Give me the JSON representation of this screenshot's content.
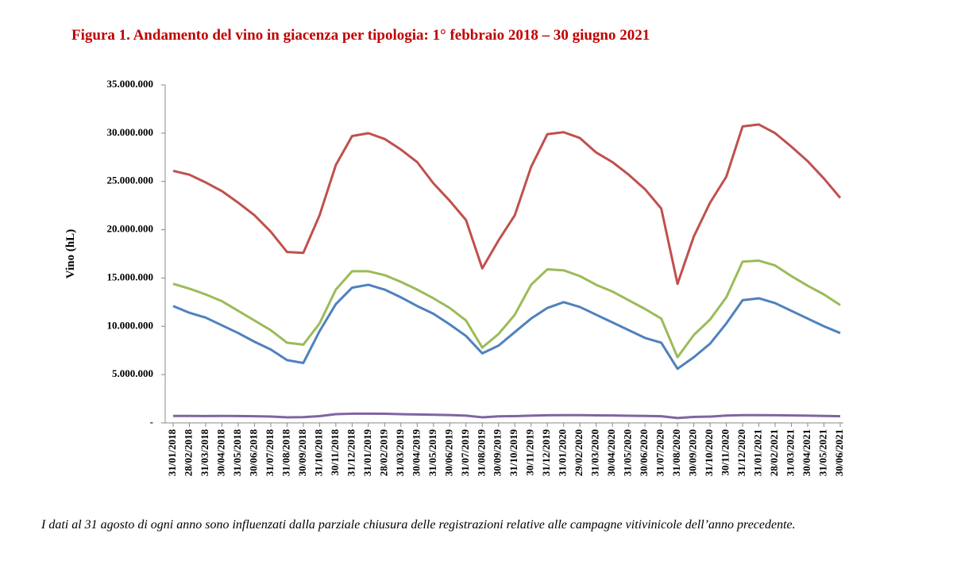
{
  "chart_data": {
    "type": "line",
    "title": "Figura 1. Andamento del vino in giacenza per tipologia: 1° febbraio 2018 – 30 giugno 2021",
    "y_label": "Vino (hL)",
    "note": "I dati al 31 agosto di ogni anno sono influenzati dalla parziale chiusura delle registrazioni relative alle campagne vitivinicole dell’anno precedente.",
    "categories": [
      "31/01/2018",
      "28/02/2018",
      "31/03/2018",
      "30/04/2018",
      "31/05/2018",
      "30/06/2018",
      "31/07/2018",
      "31/08/2018",
      "30/09/2018",
      "31/10/2018",
      "30/11/2018",
      "31/12/2018",
      "31/01/2019",
      "28/02/2019",
      "31/03/2019",
      "30/04/2019",
      "31/05/2019",
      "30/06/2019",
      "31/07/2019",
      "31/08/2019",
      "30/09/2019",
      "31/10/2019",
      "30/11/2019",
      "31/12/2019",
      "31/01/2020",
      "29/02/2020",
      "31/03/2020",
      "30/04/2020",
      "31/05/2020",
      "30/06/2020",
      "31/07/2020",
      "31/08/2020",
      "30/09/2020",
      "31/10/2020",
      "30/11/2020",
      "31/12/2020",
      "31/01/2021",
      "28/02/2021",
      "31/03/2021",
      "30/04/2021",
      "31/05/2021",
      "30/06/2021"
    ],
    "series": [
      {
        "color": "#c0504d",
        "values": [
          26100000,
          25700000,
          24900000,
          24000000,
          22800000,
          21500000,
          19800000,
          17700000,
          17600000,
          21500000,
          26700000,
          29700000,
          30000000,
          29400000,
          28300000,
          27000000,
          24800000,
          23000000,
          21000000,
          16000000,
          18900000,
          21500000,
          26500000,
          29900000,
          30100000,
          29500000,
          28000000,
          27000000,
          25700000,
          24200000,
          22200000,
          14400000,
          19300000,
          22800000,
          25500000,
          30700000,
          30900000,
          30000000,
          28600000,
          27100000,
          25300000,
          23300000
        ]
      },
      {
        "color": "#9bbb59",
        "values": [
          14400000,
          13900000,
          13300000,
          12600000,
          11600000,
          10600000,
          9600000,
          8300000,
          8100000,
          10300000,
          13800000,
          15700000,
          15700000,
          15300000,
          14600000,
          13800000,
          12900000,
          11900000,
          10600000,
          7800000,
          9200000,
          11200000,
          14300000,
          15900000,
          15800000,
          15200000,
          14300000,
          13600000,
          12700000,
          11800000,
          10800000,
          6800000,
          9100000,
          10700000,
          13000000,
          16700000,
          16800000,
          16300000,
          15200000,
          14200000,
          13300000,
          12200000
        ]
      },
      {
        "color": "#4f81bd",
        "values": [
          12100000,
          11400000,
          10900000,
          10100000,
          9300000,
          8400000,
          7600000,
          6500000,
          6200000,
          9500000,
          12300000,
          14000000,
          14300000,
          13800000,
          13000000,
          12100000,
          11300000,
          10200000,
          9000000,
          7200000,
          8000000,
          9400000,
          10800000,
          11900000,
          12500000,
          12000000,
          11200000,
          10400000,
          9600000,
          8800000,
          8300000,
          5600000,
          6800000,
          8200000,
          10300000,
          12700000,
          12900000,
          12400000,
          11600000,
          10800000,
          10000000,
          9300000
        ]
      },
      {
        "color": "#8064a2",
        "values": [
          720000,
          720000,
          710000,
          720000,
          710000,
          690000,
          660000,
          580000,
          600000,
          700000,
          900000,
          950000,
          950000,
          940000,
          900000,
          870000,
          840000,
          810000,
          750000,
          580000,
          680000,
          700000,
          750000,
          790000,
          800000,
          800000,
          780000,
          770000,
          740000,
          720000,
          690000,
          500000,
          620000,
          650000,
          760000,
          800000,
          800000,
          790000,
          770000,
          750000,
          720000,
          690000
        ]
      }
    ],
    "ylim": [
      0,
      35000000
    ],
    "yticks": [
      {
        "value": 0,
        "label": "-"
      },
      {
        "value": 5000000,
        "label": "5.000.000"
      },
      {
        "value": 10000000,
        "label": "10.000.000"
      },
      {
        "value": 15000000,
        "label": "15.000.000"
      },
      {
        "value": 20000000,
        "label": "20.000.000"
      },
      {
        "value": 25000000,
        "label": "25.000.000"
      },
      {
        "value": 30000000,
        "label": "30.000.000"
      },
      {
        "value": 35000000,
        "label": "35.000.000"
      }
    ]
  }
}
